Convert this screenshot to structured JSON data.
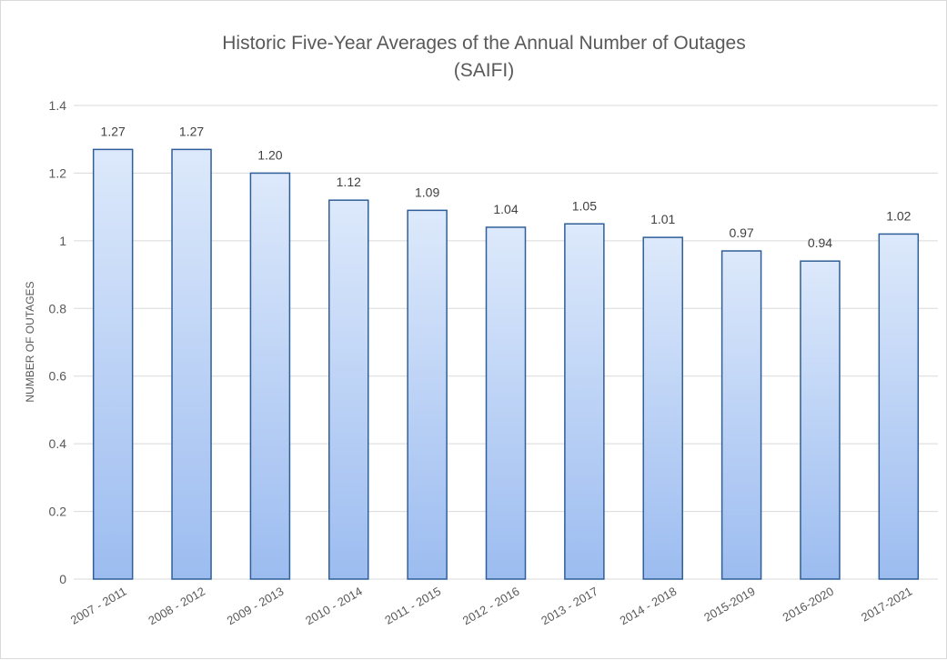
{
  "chart_data": {
    "type": "bar",
    "title": "Historic Five-Year Averages of the Annual Number of Outages",
    "subtitle": "(SAIFI)",
    "xlabel": "",
    "ylabel": "NUMBER OF OUTAGES",
    "ylim": [
      0,
      1.4
    ],
    "yticks": [
      "0",
      "0.2",
      "0.4",
      "0.6",
      "0.8",
      "1",
      "1.2",
      "1.4"
    ],
    "grid": true,
    "legend": "none",
    "categories": [
      "2007 - 2011",
      "2008 - 2012",
      "2009 - 2013",
      "2010 - 2014",
      "2011 - 2015",
      "2012 - 2016",
      "2013 - 2017",
      "2014 - 2018",
      "2015-2019",
      "2016-2020",
      "2017-2021"
    ],
    "values": [
      1.27,
      1.27,
      1.2,
      1.12,
      1.09,
      1.04,
      1.05,
      1.01,
      0.97,
      0.94,
      1.02
    ],
    "data_labels": [
      "1.27",
      "1.27",
      "1.20",
      "1.12",
      "1.09",
      "1.04",
      "1.05",
      "1.01",
      "0.97",
      "0.94",
      "1.02"
    ],
    "colors": {
      "bar_top": "#dde9fb",
      "bar_bottom": "#9cbcf0",
      "bar_border": "#2f5f98",
      "grid": "#d9d9d9"
    }
  }
}
